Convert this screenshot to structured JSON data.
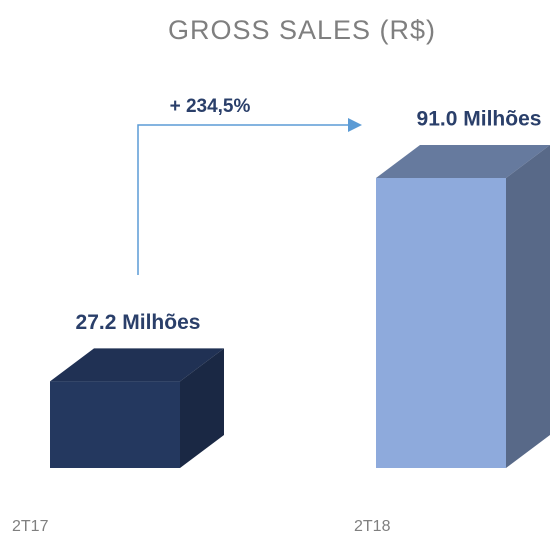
{
  "chart_data": {
    "type": "bar",
    "title": "GROSS SALES (R$)",
    "categories": [
      "2T17",
      "2T18"
    ],
    "values": [
      27.2,
      91.0
    ],
    "value_labels": [
      "27.2 Milhões",
      "91.0 Milhões"
    ],
    "colors": [
      "#24385f",
      "#8eaadc"
    ],
    "annotation": "+ 234,5%"
  }
}
